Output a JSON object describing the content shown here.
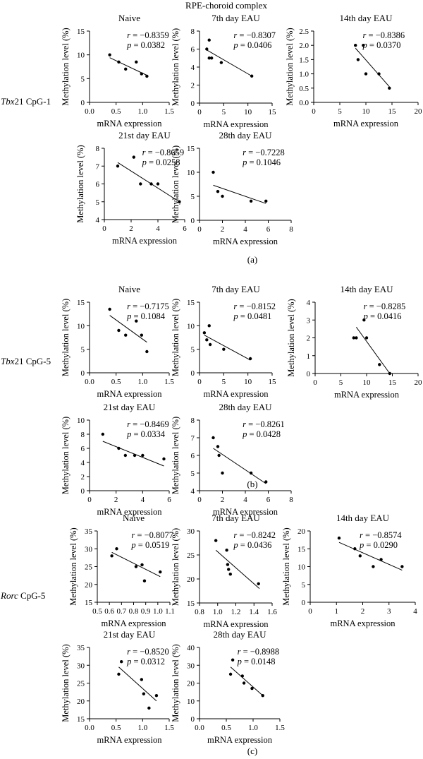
{
  "figure_header": "RPE-choroid complex",
  "row_labels": [
    {
      "gene": "Tbx",
      "rest": "21 CpG-1"
    },
    {
      "gene": "Tbx",
      "rest": "21 CpG-5"
    },
    {
      "gene": "Rorc",
      "rest": " CpG-5"
    }
  ],
  "panel_labels": [
    "(a)",
    "(b)",
    "(c)"
  ],
  "colors": {
    "axis": "#000000",
    "point": "#000000",
    "line": "#000000"
  },
  "chart_data": [
    {
      "type": "scatter",
      "title": "Naive",
      "xlabel": "mRNA expression",
      "ylabel": "Methylation level (%)",
      "r": "−0.8359",
      "p": "0.0382",
      "xlim": [
        0,
        1.5
      ],
      "ylim": [
        0,
        15
      ],
      "xticks": [
        "0.0",
        "0.5",
        "1.0",
        "1.5"
      ],
      "yticks": [
        "0",
        "5",
        "10",
        "15"
      ],
      "points": [
        [
          0.38,
          10
        ],
        [
          0.55,
          8.5
        ],
        [
          0.68,
          7
        ],
        [
          0.88,
          8.5
        ],
        [
          0.98,
          6
        ],
        [
          1.08,
          5.5
        ]
      ],
      "fit": [
        [
          0.38,
          9.4
        ],
        [
          1.08,
          5.7
        ]
      ]
    },
    {
      "type": "scatter",
      "title": "7th day EAU",
      "xlabel": "mRNA expression",
      "ylabel": "Methylation level (%)",
      "r": "−0.8307",
      "p": "0.0406",
      "xlim": [
        0,
        15
      ],
      "ylim": [
        0,
        8
      ],
      "xticks": [
        "0",
        "5",
        "10",
        "15"
      ],
      "yticks": [
        "0",
        "2",
        "4",
        "6",
        "8"
      ],
      "points": [
        [
          1.5,
          6
        ],
        [
          2.0,
          7
        ],
        [
          2.0,
          5
        ],
        [
          2.5,
          5
        ],
        [
          4.5,
          4.5
        ],
        [
          10.8,
          3
        ]
      ],
      "fit": [
        [
          1.5,
          5.9
        ],
        [
          10.8,
          3.0
        ]
      ]
    },
    {
      "type": "scatter",
      "title": "14th day EAU",
      "xlabel": "mRNA expression",
      "ylabel": "Methylation level (%)",
      "r": "−0.8386",
      "p": "0.0370",
      "xlim": [
        0,
        20
      ],
      "ylim": [
        0,
        2.5
      ],
      "xticks": [
        "0",
        "5",
        "10",
        "15",
        "20"
      ],
      "yticks": [
        "0.0",
        "0.5",
        "1.0",
        "1.5",
        "2.0",
        "2.5"
      ],
      "points": [
        [
          8,
          2
        ],
        [
          8.5,
          1.5
        ],
        [
          9.5,
          2
        ],
        [
          10,
          1
        ],
        [
          12.5,
          1
        ],
        [
          14.5,
          0.5
        ]
      ],
      "fit": [
        [
          8,
          1.9
        ],
        [
          14.5,
          0.55
        ]
      ]
    },
    {
      "type": "scatter",
      "title": "21st day EAU",
      "xlabel": "mRNA expression",
      "ylabel": "Methylation level (%)",
      "r": "−0.8659",
      "p": "0.0258",
      "xlim": [
        0,
        6
      ],
      "ylim": [
        4,
        8
      ],
      "xticks": [
        "0",
        "2",
        "4",
        "6"
      ],
      "yticks": [
        "4",
        "5",
        "6",
        "7",
        "8"
      ],
      "points": [
        [
          1,
          7
        ],
        [
          2.2,
          7.5
        ],
        [
          2.7,
          6
        ],
        [
          3.5,
          6
        ],
        [
          4,
          6
        ],
        [
          5.6,
          5
        ]
      ],
      "fit": [
        [
          1,
          7.2
        ],
        [
          5.6,
          5.0
        ]
      ]
    },
    {
      "type": "scatter",
      "title": "28th day EAU",
      "xlabel": "mRNA expression",
      "ylabel": "Methylation level (%)",
      "r": "−0.7228",
      "p": "0.1046",
      "xlim": [
        0,
        8
      ],
      "ylim": [
        0,
        15
      ],
      "xticks": [
        "0",
        "2",
        "4",
        "6",
        "8"
      ],
      "yticks": [
        "0",
        "5",
        "10",
        "15"
      ],
      "points": [
        [
          1.2,
          10
        ],
        [
          1.6,
          6
        ],
        [
          2,
          5
        ],
        [
          4.5,
          4
        ],
        [
          5.8,
          4
        ]
      ],
      "fit": [
        [
          1.2,
          7.3
        ],
        [
          5.8,
          3.5
        ]
      ]
    },
    {
      "type": "scatter",
      "title": "Naive",
      "xlabel": "mRNA expression",
      "ylabel": "Methylation level (%)",
      "r": "−0.7175",
      "p": "0.1084",
      "xlim": [
        0,
        1.5
      ],
      "ylim": [
        0,
        15
      ],
      "xticks": [
        "0.0",
        "0.5",
        "1.0",
        "1.5"
      ],
      "yticks": [
        "0",
        "5",
        "10",
        "15"
      ],
      "points": [
        [
          0.38,
          13.5
        ],
        [
          0.55,
          9
        ],
        [
          0.68,
          8
        ],
        [
          0.88,
          11
        ],
        [
          0.98,
          8
        ],
        [
          1.08,
          4.5
        ]
      ],
      "fit": [
        [
          0.38,
          12.2
        ],
        [
          1.08,
          6.5
        ]
      ]
    },
    {
      "type": "scatter",
      "title": "7th day EAU",
      "xlabel": "mRNA expression",
      "ylabel": "Methylation level (%)",
      "r": "−0.8152",
      "p": "0.0481",
      "xlim": [
        0,
        15
      ],
      "ylim": [
        0,
        15
      ],
      "xticks": [
        "0",
        "5",
        "10",
        "15"
      ],
      "yticks": [
        "0",
        "5",
        "10",
        "15"
      ],
      "points": [
        [
          1,
          8.5
        ],
        [
          1.5,
          7
        ],
        [
          2,
          10
        ],
        [
          2.2,
          6
        ],
        [
          5,
          5
        ],
        [
          10.5,
          3
        ]
      ],
      "fit": [
        [
          1,
          8.0
        ],
        [
          10.5,
          2.7
        ]
      ]
    },
    {
      "type": "scatter",
      "title": "14th day EAU",
      "xlabel": "mRNA expression",
      "ylabel": "Methylation level (%)",
      "r": "−0.8285",
      "p": "0.0416",
      "xlim": [
        0,
        20
      ],
      "ylim": [
        0,
        4
      ],
      "xticks": [
        "0",
        "5",
        "10",
        "15",
        "20"
      ],
      "yticks": [
        "0",
        "1",
        "2",
        "3",
        "4"
      ],
      "points": [
        [
          7.5,
          2
        ],
        [
          8,
          2
        ],
        [
          9.5,
          3
        ],
        [
          10,
          2
        ],
        [
          12.5,
          0.5
        ],
        [
          14.5,
          0
        ]
      ],
      "fit": [
        [
          8,
          2.6
        ],
        [
          14.5,
          0
        ]
      ]
    },
    {
      "type": "scatter",
      "title": "21st day EAU",
      "xlabel": "mRNA expression",
      "ylabel": "Methylation level (%)",
      "r": "−0.8469",
      "p": "0.0334",
      "xlim": [
        0,
        6
      ],
      "ylim": [
        0,
        10
      ],
      "xticks": [
        "0",
        "2",
        "4",
        "6"
      ],
      "yticks": [
        "0",
        "2",
        "4",
        "6",
        "8",
        "10"
      ],
      "points": [
        [
          1,
          8
        ],
        [
          2.2,
          6
        ],
        [
          2.7,
          5
        ],
        [
          3.4,
          5
        ],
        [
          4,
          5
        ],
        [
          5.6,
          4.5
        ]
      ],
      "fit": [
        [
          1,
          7.0
        ],
        [
          5.6,
          3.5
        ]
      ]
    },
    {
      "type": "scatter",
      "title": "28th day EAU",
      "xlabel": "mRNA expression",
      "ylabel": "Methylation level (%)",
      "r": "−0.8261",
      "p": "0.0428",
      "xlim": [
        0,
        8
      ],
      "ylim": [
        4,
        8
      ],
      "xticks": [
        "0",
        "2",
        "4",
        "6",
        "8"
      ],
      "yticks": [
        "4",
        "5",
        "6",
        "7",
        "8"
      ],
      "points": [
        [
          1.2,
          7
        ],
        [
          1.6,
          6.5
        ],
        [
          1.7,
          6
        ],
        [
          2,
          5
        ],
        [
          4.5,
          5
        ],
        [
          5.8,
          4.5
        ]
      ],
      "fit": [
        [
          1.2,
          6.4
        ],
        [
          5.8,
          4.4
        ]
      ]
    },
    {
      "type": "scatter",
      "title": "Naive",
      "xlabel": "mRNA expression",
      "ylabel": "Methylation level (%)",
      "r": "−0.8077",
      "p": "0.0519",
      "xlim": [
        0.5,
        1.1
      ],
      "ylim": [
        15,
        35
      ],
      "xticks": [
        "0.5",
        "0.6",
        "0.7",
        "0.8",
        "0.9",
        "1.0",
        "1.1"
      ],
      "yticks": [
        "15",
        "20",
        "25",
        "30",
        "35"
      ],
      "points": [
        [
          0.62,
          28
        ],
        [
          0.66,
          30
        ],
        [
          0.82,
          25
        ],
        [
          0.87,
          25.5
        ],
        [
          0.89,
          21
        ],
        [
          1.02,
          23.5
        ]
      ],
      "fit": [
        [
          0.62,
          29
        ],
        [
          1.02,
          22.2
        ]
      ]
    },
    {
      "type": "scatter",
      "title": "7th day EAU",
      "xlabel": "mRNA expression",
      "ylabel": "Methylation level (%)",
      "r": "−0.8242",
      "p": "0.0436",
      "xlim": [
        0.8,
        1.6
      ],
      "ylim": [
        15,
        30
      ],
      "xticks": [
        "0.8",
        "1.0",
        "1.2",
        "1.4",
        "1.6"
      ],
      "yticks": [
        "15",
        "20",
        "25",
        "30"
      ],
      "points": [
        [
          0.98,
          28
        ],
        [
          1.1,
          26
        ],
        [
          1.11,
          23
        ],
        [
          1.12,
          22
        ],
        [
          1.14,
          21
        ],
        [
          1.45,
          19
        ]
      ],
      "fit": [
        [
          0.98,
          26
        ],
        [
          1.46,
          18
        ]
      ]
    },
    {
      "type": "scatter",
      "title": "14th day EAU",
      "xlabel": "mRNA expression",
      "ylabel": "Methylation level (%)",
      "r": "−0.8574",
      "p": "0.0290",
      "xlim": [
        0,
        4
      ],
      "ylim": [
        0,
        20
      ],
      "xticks": [
        "0",
        "1",
        "2",
        "3",
        "4"
      ],
      "yticks": [
        "0",
        "5",
        "10",
        "15",
        "20"
      ],
      "points": [
        [
          1.1,
          18
        ],
        [
          1.7,
          15
        ],
        [
          1.9,
          13
        ],
        [
          2.4,
          10
        ],
        [
          2.7,
          12
        ],
        [
          3.5,
          10
        ]
      ],
      "fit": [
        [
          1.1,
          16.8
        ],
        [
          3.5,
          9
        ]
      ]
    },
    {
      "type": "scatter",
      "title": "21st day EAU",
      "xlabel": "mRNA expression",
      "ylabel": "Methylation level (%)",
      "r": "−0.8520",
      "p": "0.0312",
      "xlim": [
        0,
        1.5
      ],
      "ylim": [
        15,
        35
      ],
      "xticks": [
        "0.0",
        "0.5",
        "1.0",
        "1.5"
      ],
      "yticks": [
        "15",
        "20",
        "25",
        "30",
        "35"
      ],
      "points": [
        [
          0.55,
          27.5
        ],
        [
          0.6,
          31
        ],
        [
          0.98,
          26
        ],
        [
          1.02,
          22
        ],
        [
          1.12,
          18
        ],
        [
          1.26,
          21.5
        ]
      ],
      "fit": [
        [
          0.55,
          29.5
        ],
        [
          1.26,
          20
        ]
      ]
    },
    {
      "type": "scatter",
      "title": "28th day EAU",
      "xlabel": "mRNA expression",
      "ylabel": "Methylation level (%)",
      "r": "−0.8988",
      "p": "0.0148",
      "xlim": [
        0,
        1.5
      ],
      "ylim": [
        0,
        40
      ],
      "xticks": [
        "0.0",
        "0.5",
        "1.0",
        "1.5"
      ],
      "yticks": [
        "0",
        "10",
        "20",
        "30",
        "40"
      ],
      "points": [
        [
          0.58,
          25
        ],
        [
          0.62,
          33
        ],
        [
          0.8,
          24
        ],
        [
          0.83,
          20
        ],
        [
          0.98,
          17
        ],
        [
          1.18,
          13
        ]
      ],
      "fit": [
        [
          0.58,
          29
        ],
        [
          1.18,
          13
        ]
      ]
    }
  ]
}
